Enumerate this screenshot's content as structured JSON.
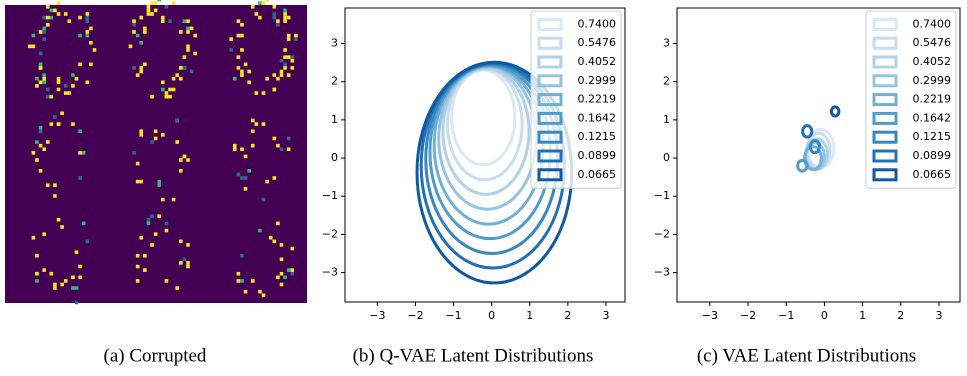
{
  "image_panel": {
    "caption": "(a) Corrupted"
  },
  "chart_data": [
    {
      "type": "ellipse",
      "caption": "(b) Q-VAE Latent Distributions",
      "xlim": [
        -3.85,
        3.5
      ],
      "ylim": [
        -3.77,
        3.93
      ],
      "xticks": [
        {
          "value": -3,
          "label": "−3"
        },
        {
          "value": -2,
          "label": "−2"
        },
        {
          "value": -1,
          "label": "−1"
        },
        0,
        1,
        2,
        3
      ],
      "yticks": [
        {
          "value": -3,
          "label": "−3"
        },
        {
          "value": -2,
          "label": "−2"
        },
        {
          "value": -1,
          "label": "−1"
        },
        0,
        1,
        2,
        3
      ],
      "legend": "upper right",
      "series": [
        {
          "name": "0.7400",
          "color": "#dbe9f6",
          "cx": -0.22,
          "cy": 1.06,
          "rx": 0.83,
          "ry": 1.24
        },
        {
          "name": "0.5476",
          "color": "#c9ddf0",
          "cx": -0.18,
          "cy": 0.88,
          "rx": 0.98,
          "ry": 1.45
        },
        {
          "name": "0.4052",
          "color": "#b0d2e8",
          "cx": -0.15,
          "cy": 0.7,
          "rx": 1.13,
          "ry": 1.65
        },
        {
          "name": "0.2999",
          "color": "#94c4df",
          "cx": -0.11,
          "cy": 0.52,
          "rx": 1.28,
          "ry": 1.86
        },
        {
          "name": "0.2219",
          "color": "#6fb0d7",
          "cx": -0.08,
          "cy": 0.34,
          "rx": 1.43,
          "ry": 2.07
        },
        {
          "name": "0.1642",
          "color": "#519ccc",
          "cx": -0.04,
          "cy": 0.16,
          "rx": 1.58,
          "ry": 2.27
        },
        {
          "name": "0.1215",
          "color": "#3787c0",
          "cx": 0.0,
          "cy": -0.02,
          "rx": 1.73,
          "ry": 2.48
        },
        {
          "name": "0.0899",
          "color": "#2270b5",
          "cx": 0.03,
          "cy": -0.2,
          "rx": 1.88,
          "ry": 2.68
        },
        {
          "name": "0.0665",
          "color": "#0e59a2",
          "cx": 0.07,
          "cy": -0.38,
          "rx": 2.03,
          "ry": 2.89
        }
      ]
    },
    {
      "type": "ellipse",
      "caption": "(c) VAE Latent Distributions",
      "xlim": [
        -3.86,
        3.55
      ],
      "ylim": [
        -3.77,
        3.93
      ],
      "xticks": [
        {
          "value": -3,
          "label": "−3"
        },
        {
          "value": -2,
          "label": "−2"
        },
        {
          "value": -1,
          "label": "−1"
        },
        0,
        1,
        2,
        3
      ],
      "yticks": [
        {
          "value": -3,
          "label": "−3"
        },
        {
          "value": -2,
          "label": "−2"
        },
        {
          "value": -1,
          "label": "−1"
        },
        0,
        1,
        2,
        3
      ],
      "legend": "upper right",
      "series": [
        {
          "name": "0.7400",
          "color": "#dbe9f6",
          "cx": -0.1,
          "cy": 0.25,
          "rx": 0.35,
          "ry": 0.5
        },
        {
          "name": "0.5476",
          "color": "#c9ddf0",
          "cx": -0.15,
          "cy": 0.2,
          "rx": 0.3,
          "ry": 0.45
        },
        {
          "name": "0.4052",
          "color": "#b0d2e8",
          "cx": -0.2,
          "cy": 0.1,
          "rx": 0.28,
          "ry": 0.4
        },
        {
          "name": "0.2999",
          "color": "#94c4df",
          "cx": -0.25,
          "cy": 0.05,
          "rx": 0.25,
          "ry": 0.35
        },
        {
          "name": "0.2219",
          "color": "#6fb0d7",
          "cx": -0.3,
          "cy": 0.0,
          "rx": 0.22,
          "ry": 0.3
        },
        {
          "name": "0.1642",
          "color": "#519ccc",
          "cx": -0.58,
          "cy": -0.2,
          "rx": 0.12,
          "ry": 0.14
        },
        {
          "name": "0.1215",
          "color": "#3787c0",
          "cx": -0.25,
          "cy": 0.3,
          "rx": 0.12,
          "ry": 0.16
        },
        {
          "name": "0.0899",
          "color": "#2270b5",
          "cx": -0.45,
          "cy": 0.7,
          "rx": 0.12,
          "ry": 0.15
        },
        {
          "name": "0.0665",
          "color": "#0e59a2",
          "cx": 0.28,
          "cy": 1.22,
          "rx": 0.1,
          "ry": 0.12
        }
      ]
    }
  ]
}
